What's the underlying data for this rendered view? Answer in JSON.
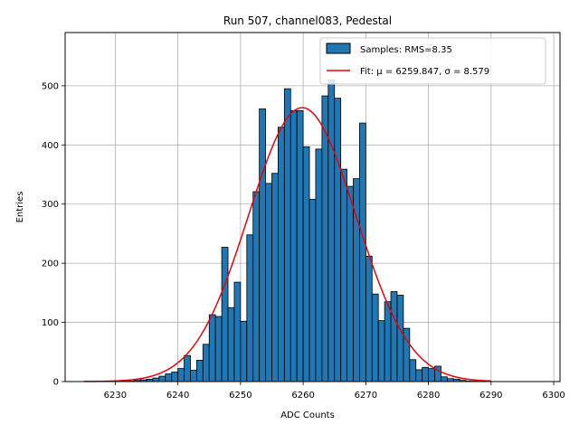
{
  "chart_data": {
    "type": "bar",
    "title": "Run 507, channel083, Pedestal",
    "xlabel": "ADC Counts",
    "ylabel": "Entries",
    "xlim": [
      6222,
      6301
    ],
    "ylim": [
      0,
      590
    ],
    "xticks": [
      6230,
      6240,
      6250,
      6260,
      6270,
      6280,
      6290,
      6300
    ],
    "yticks": [
      0,
      100,
      200,
      300,
      400,
      500
    ],
    "grid": true,
    "legend_position": "top-right",
    "bin_width": 1,
    "series": [
      {
        "name": "Samples: RMS=8.35",
        "kind": "histogram",
        "color": "#1f77b4",
        "edgecolor": "#000000",
        "bins": [
          6230,
          6231,
          6232,
          6233,
          6234,
          6235,
          6236,
          6237,
          6238,
          6239,
          6240,
          6241,
          6242,
          6243,
          6244,
          6245,
          6246,
          6247,
          6248,
          6249,
          6250,
          6251,
          6252,
          6253,
          6254,
          6255,
          6256,
          6257,
          6258,
          6259,
          6260,
          6261,
          6262,
          6263,
          6264,
          6265,
          6266,
          6267,
          6268,
          6269,
          6270,
          6271,
          6272,
          6273,
          6274,
          6275,
          6276,
          6277,
          6278,
          6279,
          6280,
          6281,
          6282,
          6283,
          6284,
          6285,
          6286,
          6287
        ],
        "values": [
          1,
          1,
          1,
          2,
          3,
          4,
          6,
          9,
          13,
          16,
          22,
          44,
          19,
          36,
          63,
          113,
          110,
          227,
          125,
          168,
          102,
          248,
          321,
          461,
          335,
          352,
          430,
          495,
          458,
          458,
          397,
          308,
          393,
          483,
          510,
          479,
          359,
          330,
          343,
          437,
          212,
          148,
          103,
          135,
          152,
          146,
          90,
          37,
          20,
          24,
          22,
          26,
          8,
          5,
          4,
          2,
          1,
          1
        ]
      },
      {
        "name": "Fit: μ = 6259.847, σ = 8.579",
        "kind": "gaussian-fit",
        "color": "#e8000b",
        "mu": 6259.847,
        "sigma": 8.579,
        "amplitude": 463,
        "x_range": [
          6225,
          6290
        ]
      }
    ]
  }
}
